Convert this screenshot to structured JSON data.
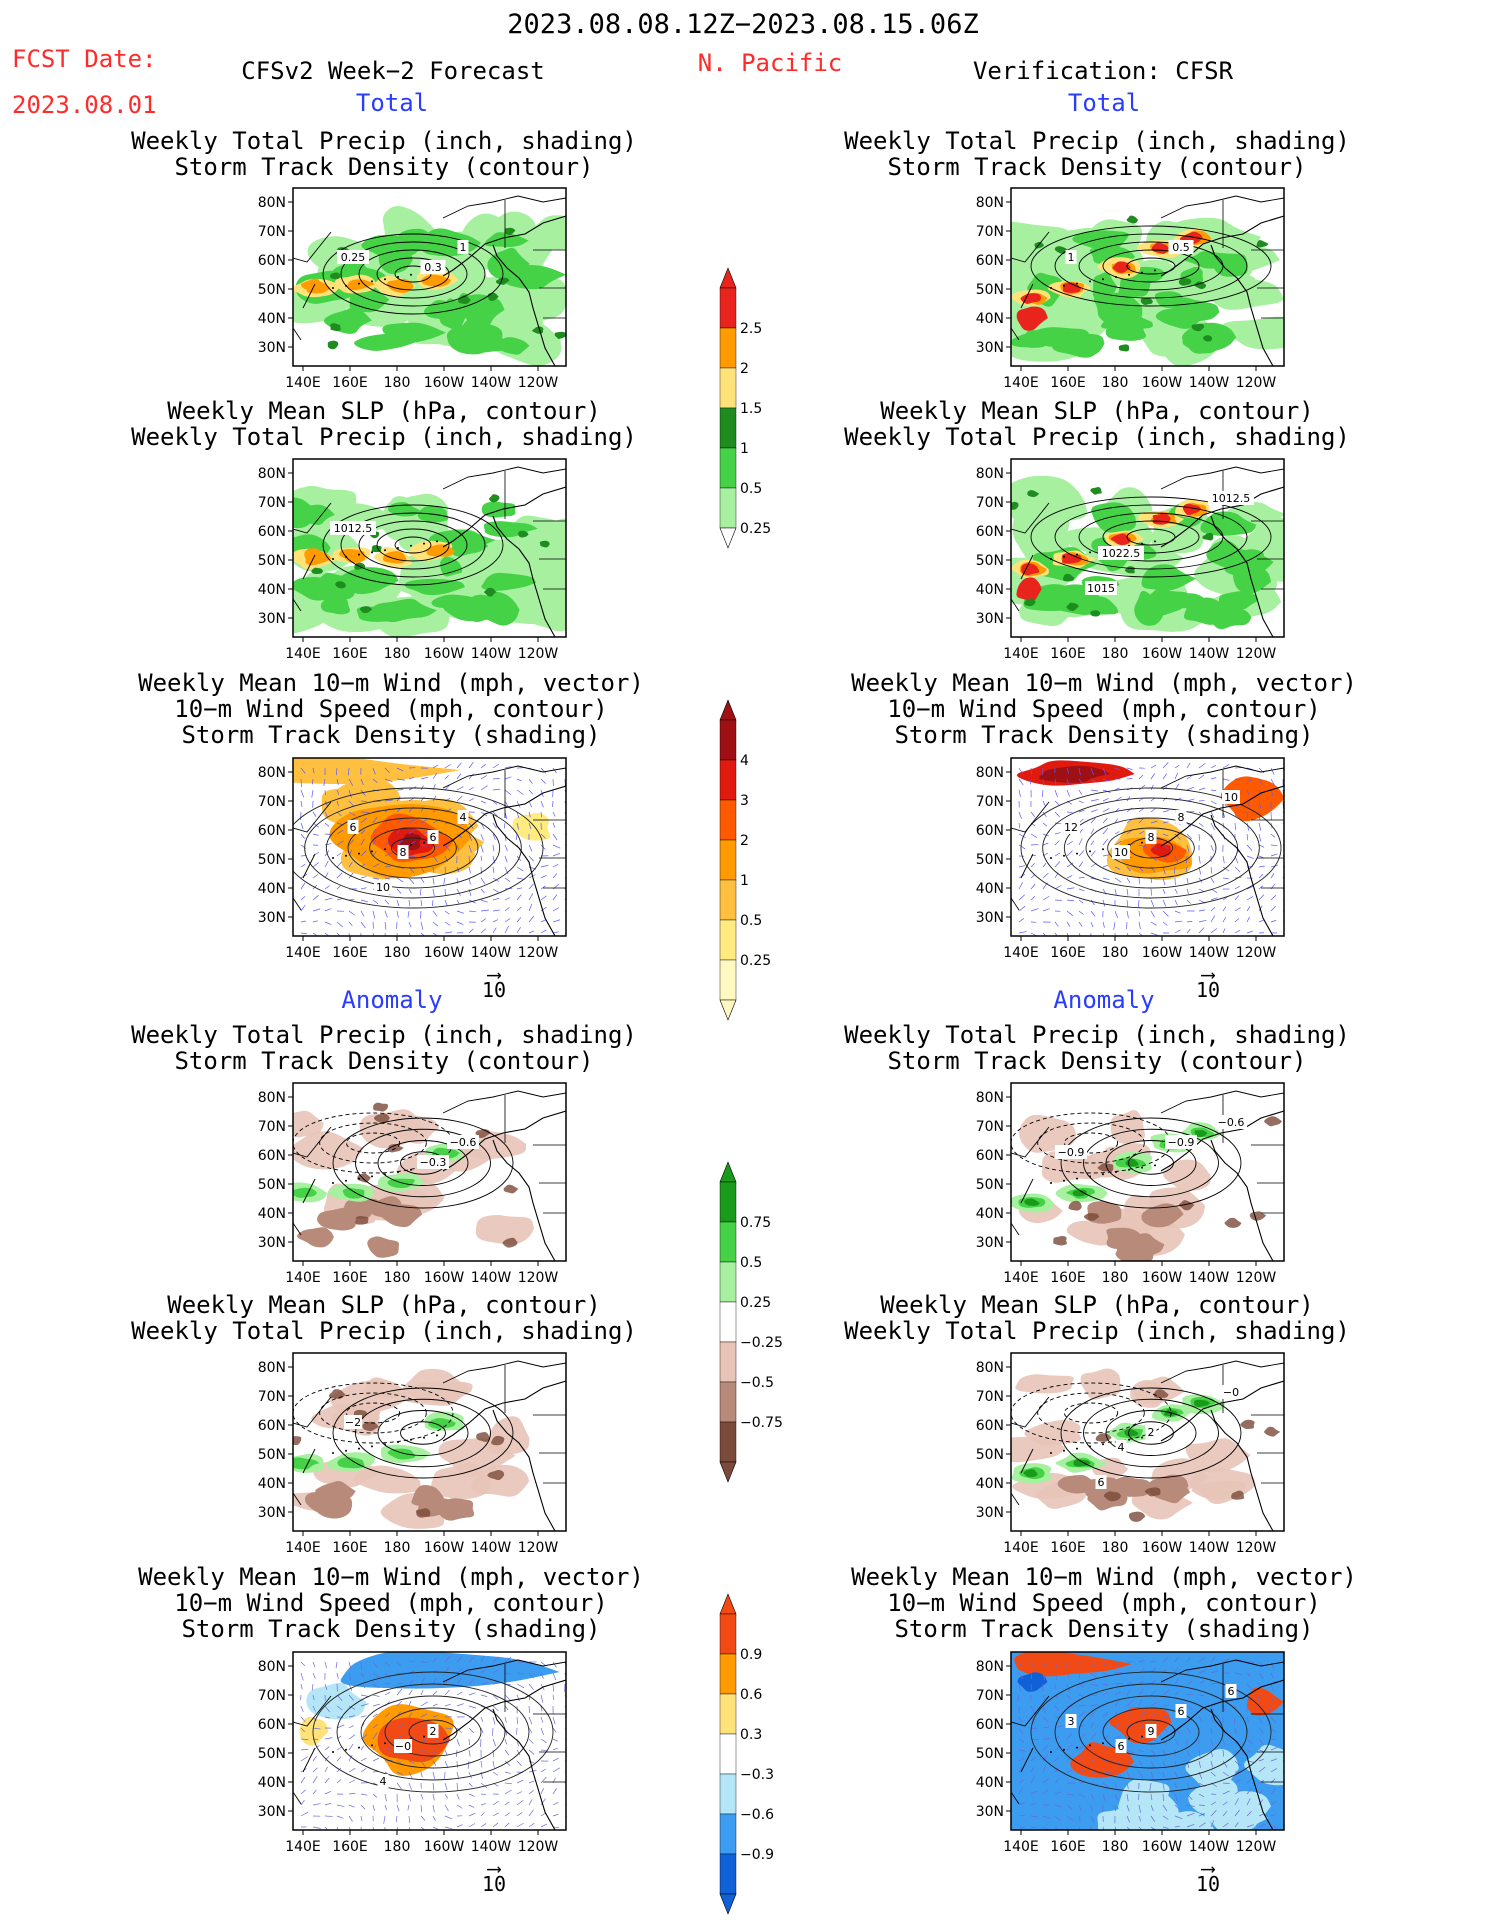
{
  "header": {
    "period": "2023.08.08.12Z−2023.08.15.06Z",
    "fcst_label": "FCST Date:",
    "fcst_date": "2023.08.01",
    "model": "CFSv2 Week−2 Forecast",
    "region": "N. Pacific",
    "verification": "Verification: CFSR"
  },
  "sections": {
    "total": "Total",
    "anomaly": "Anomaly"
  },
  "titles": {
    "precip_storm": [
      "Weekly Total Precip (inch, shading)",
      "Storm Track Density (contour)"
    ],
    "slp_precip": [
      "Weekly Mean SLP (hPa, contour)",
      "Weekly Total Precip (inch, shading)"
    ],
    "wind_storm": [
      "Weekly Mean 10−m Wind (mph, vector)",
      "10−m Wind Speed (mph, contour)",
      "Storm Track Density (shading)"
    ]
  },
  "axes": {
    "lat_labels": [
      "80N",
      "70N",
      "60N",
      "50N",
      "40N",
      "30N"
    ],
    "lon_labels": [
      "140E",
      "160E",
      "180",
      "160W",
      "140W",
      "120W"
    ]
  },
  "vector_key": "10",
  "colorbars": {
    "precip_total": {
      "labels": [
        "2.5",
        "2",
        "1.5",
        "1",
        "0.5",
        "0.25"
      ],
      "colors": [
        "#e8241c",
        "#ff9a00",
        "#ffe37a",
        "#1e8c1e",
        "#46d246",
        "#a6f0a0"
      ]
    },
    "storm_total": {
      "labels": [
        "4",
        "3",
        "2",
        "1",
        "0.5",
        "0.25"
      ],
      "colors": [
        "#9e1014",
        "#e01a0e",
        "#ff5a00",
        "#ff9a00",
        "#ffc040",
        "#ffeb80",
        "#fff8c0"
      ]
    },
    "precip_anom": {
      "labels": [
        "0.75",
        "0.5",
        "0.25",
        "−0.25",
        "−0.5",
        "−0.75"
      ],
      "colors": [
        "#1a9a1a",
        "#46d246",
        "#a6f0a0",
        "#ffffff",
        "#e8c4b8",
        "#b88a7a",
        "#7a4a3a"
      ]
    },
    "storm_anom": {
      "labels": [
        "0.9",
        "0.6",
        "0.3",
        "−0.3",
        "−0.6",
        "−0.9"
      ],
      "colors": [
        "#f24a14",
        "#ff9a00",
        "#ffe37a",
        "#ffffff",
        "#b4e6f8",
        "#3c9cf0",
        "#1060d8"
      ]
    }
  },
  "panels": {
    "L1": {
      "labels": [
        "0.3",
        "1",
        "0.25"
      ]
    },
    "R1": {
      "labels": [
        "0.5",
        "1"
      ]
    },
    "L2": {
      "labels": [
        "1012.5"
      ]
    },
    "R2": {
      "labels": [
        "1012.5",
        "1015",
        "1022.5"
      ]
    },
    "L3": {
      "labels": [
        "10",
        "8",
        "6",
        "4",
        "6"
      ]
    },
    "R3": {
      "labels": [
        "10",
        "8",
        "8",
        "12",
        "10"
      ]
    },
    "L4": {
      "labels": [
        "−0.3",
        "−0.6"
      ]
    },
    "R4": {
      "labels": [
        "−0.9",
        "−0.9",
        "−0.6"
      ]
    },
    "L5": {
      "labels": [
        "−2"
      ]
    },
    "R5": {
      "labels": [
        "−0",
        "6",
        "4",
        "2"
      ]
    },
    "L6": {
      "labels": [
        "4",
        "−0",
        "2"
      ]
    },
    "R6": {
      "labels": [
        "6",
        "9",
        "6",
        "3",
        "6"
      ]
    }
  }
}
